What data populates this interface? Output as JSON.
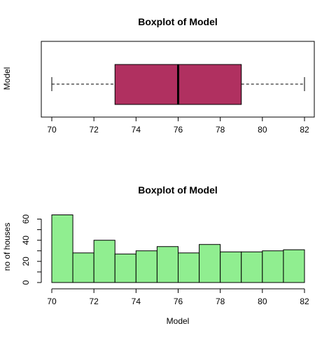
{
  "chart_data": [
    {
      "type": "boxplot",
      "title": "Boxplot of Model",
      "ylabel": "Model",
      "xlim": [
        70,
        82
      ],
      "x_ticks": [
        "70",
        "72",
        "74",
        "76",
        "78",
        "80",
        "82"
      ],
      "horizontal": true,
      "box": {
        "min": 70,
        "q1": 73,
        "median": 76,
        "q3": 79,
        "max": 82
      },
      "box_color": "#B03060"
    },
    {
      "type": "histogram",
      "title": "Boxplot of Model",
      "xlabel": "Model",
      "ylabel": "no of houses",
      "xlim": [
        70,
        82
      ],
      "ylim": [
        0,
        65
      ],
      "x_ticks": [
        "70",
        "72",
        "74",
        "76",
        "78",
        "80",
        "82"
      ],
      "y_ticks": [
        "0",
        "20",
        "40",
        "60"
      ],
      "bins": [
        {
          "from": 70,
          "to": 71,
          "count": 64
        },
        {
          "from": 71,
          "to": 72,
          "count": 28
        },
        {
          "from": 72,
          "to": 73,
          "count": 40
        },
        {
          "from": 73,
          "to": 74,
          "count": 27
        },
        {
          "from": 74,
          "to": 75,
          "count": 30
        },
        {
          "from": 75,
          "to": 76,
          "count": 34
        },
        {
          "from": 76,
          "to": 77,
          "count": 28
        },
        {
          "from": 77,
          "to": 78,
          "count": 36
        },
        {
          "from": 78,
          "to": 79,
          "count": 29
        },
        {
          "from": 79,
          "to": 80,
          "count": 29
        },
        {
          "from": 80,
          "to": 81,
          "count": 30
        },
        {
          "from": 81,
          "to": 82,
          "count": 31
        }
      ],
      "bar_color": "#90EE90"
    }
  ]
}
